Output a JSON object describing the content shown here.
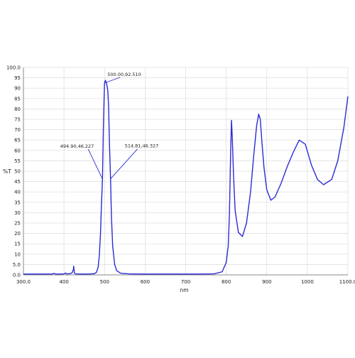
{
  "colors": {
    "series": "#2b2bd6",
    "grid": "#dcdcdc",
    "axis": "#888888",
    "text": "#222222"
  },
  "chart_data": {
    "type": "line",
    "title": "",
    "xlabel": "nm",
    "ylabel": "%T",
    "xlim": [
      300,
      1100
    ],
    "ylim": [
      0,
      100
    ],
    "grid": true,
    "x_ticks": [
      "300.0",
      "400",
      "500",
      "600",
      "700",
      "800",
      "900",
      "1000",
      "1100.0"
    ],
    "y_ticks": [
      "0.0",
      "5.0",
      "10",
      "15",
      "20",
      "25",
      "30",
      "35",
      "40",
      "45",
      "50",
      "55",
      "60",
      "65",
      "70",
      "75",
      "80",
      "85",
      "90",
      "95",
      "100.0"
    ],
    "series": [
      {
        "x": [
          300,
          370,
          375,
          380,
          395,
          400,
          404,
          406,
          410,
          415,
          420,
          423,
          424,
          425,
          426,
          428,
          440,
          460,
          475,
          480,
          484,
          487,
          490,
          492,
          494.9,
          497,
          499,
          500,
          502,
          505,
          508,
          510,
          512,
          514.81,
          517,
          520,
          525,
          530,
          540,
          560,
          600,
          650,
          700,
          740,
          770,
          790,
          800,
          805,
          808,
          811,
          813,
          815,
          818,
          822,
          830,
          840,
          850,
          860,
          868,
          875,
          880,
          884,
          888,
          893,
          900,
          910,
          920,
          935,
          950,
          965,
          980,
          995,
          1010,
          1025,
          1040,
          1060,
          1075,
          1090,
          1100
        ],
        "y": [
          0.4,
          0.4,
          0.7,
          0.4,
          0.4,
          0.5,
          0.9,
          0.5,
          0.5,
          0.6,
          1.0,
          2.5,
          4.2,
          2.0,
          0.8,
          0.5,
          0.4,
          0.4,
          0.6,
          1.2,
          3.5,
          9.0,
          20.0,
          32.0,
          46.2,
          70.0,
          86.0,
          92.5,
          93.8,
          92.3,
          89.0,
          81.0,
          64.0,
          46.3,
          28.0,
          14.0,
          5.0,
          2.0,
          0.8,
          0.5,
          0.4,
          0.4,
          0.4,
          0.4,
          0.5,
          1.5,
          6.0,
          14.0,
          30.0,
          60.0,
          74.5,
          66.0,
          48.0,
          31.0,
          20.5,
          18.5,
          25.0,
          40.0,
          58.0,
          72.0,
          77.5,
          75.0,
          64.0,
          52.0,
          41.0,
          36.0,
          37.5,
          44.0,
          52.0,
          59.0,
          65.0,
          63.0,
          53.0,
          46.0,
          43.5,
          46.0,
          55.0,
          71.0,
          86.0
        ]
      }
    ],
    "annotations": [
      {
        "label": "500.00,92.510",
        "x": 500.0,
        "y": 92.51
      },
      {
        "label": "494.90,46.227",
        "x": 494.9,
        "y": 46.227
      },
      {
        "label": "514.81,46.327",
        "x": 514.81,
        "y": 46.327
      }
    ]
  }
}
